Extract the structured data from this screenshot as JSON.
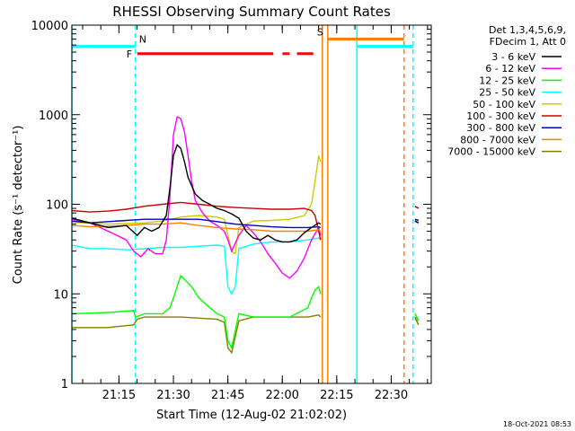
{
  "chart_data": {
    "type": "line",
    "title": "RHESSI Observing Summary Count Rates",
    "xlabel": "Start Time (12-Aug-02 21:02:02)",
    "ylabel": "Count Rate (s⁻¹ detector⁻¹)",
    "yscale": "log",
    "ylim": [
      1,
      10000
    ],
    "xlim_minutes": [
      0,
      99
    ],
    "x_unit": "minutes after 21:02:02",
    "x_tick_labels": [
      "21:15",
      "21:30",
      "21:45",
      "22:00",
      "22:15",
      "22:30"
    ],
    "x_tick_minutes": [
      12.97,
      27.97,
      42.97,
      57.97,
      72.97,
      87.97
    ],
    "y_tick_labels": [
      "1",
      "10",
      "100",
      "1000",
      "10000"
    ],
    "y_tick_values": [
      1,
      10,
      100,
      1000,
      10000
    ],
    "legend_header": [
      "Det 1,3,4,5,6,9,",
      "FDecim 1, Att 0"
    ],
    "legend_placement": "right",
    "timestamp": "18-Oct-2021 08:53",
    "series": [
      {
        "name": "3 - 6 keV",
        "color": "#000000",
        "x": [
          0,
          5,
          10,
          15,
          18,
          20,
          22,
          24,
          26,
          27,
          28,
          29,
          30,
          31,
          32,
          34,
          36,
          38,
          40,
          42,
          44,
          46,
          48,
          50,
          52,
          54,
          56,
          58,
          60,
          62,
          64,
          66,
          68,
          68.5
        ],
        "y": [
          70,
          62,
          55,
          58,
          45,
          55,
          50,
          55,
          75,
          150,
          350,
          460,
          420,
          300,
          200,
          130,
          110,
          100,
          90,
          85,
          78,
          70,
          50,
          42,
          40,
          45,
          40,
          38,
          38,
          40,
          48,
          55,
          62,
          60
        ]
      },
      {
        "name": "6 - 12 keV",
        "color": "#ff00ff",
        "x": [
          0,
          5,
          10,
          15,
          17,
          19,
          21,
          23,
          25,
          26,
          27,
          28,
          29,
          30,
          31,
          32,
          33,
          34,
          36,
          38,
          40,
          42,
          43,
          44,
          46,
          48,
          50,
          52,
          54,
          56,
          58,
          60,
          62,
          64,
          66,
          68,
          68.5
        ],
        "y": [
          68,
          62,
          50,
          40,
          30,
          26,
          32,
          28,
          28,
          40,
          120,
          600,
          950,
          900,
          650,
          350,
          180,
          110,
          80,
          65,
          58,
          50,
          40,
          30,
          45,
          58,
          48,
          38,
          28,
          22,
          17,
          15,
          18,
          25,
          40,
          55,
          45
        ]
      },
      {
        "name": "12 - 25 keV",
        "color": "#00ff00",
        "x": [
          0,
          10,
          17,
          17.5,
          20,
          25,
          27,
          28,
          30,
          33,
          35,
          38,
          40,
          42,
          43,
          44,
          46,
          50,
          55,
          60,
          65,
          66,
          67,
          68,
          68.5
        ],
        "y": [
          6,
          6.2,
          6.5,
          5.5,
          6,
          6,
          7,
          9,
          16,
          12,
          9,
          7,
          6,
          5.5,
          3,
          2.5,
          6,
          5.5,
          5.5,
          5.5,
          7,
          9,
          11,
          12,
          10
        ]
      },
      {
        "name": "25 - 50 keV",
        "color": "#00ffff",
        "x": [
          0,
          5,
          10,
          15,
          20,
          25,
          30,
          35,
          40,
          42,
          43,
          44,
          45,
          46,
          50,
          55,
          60,
          65,
          68,
          68.5
        ],
        "y": [
          35,
          32,
          32,
          31,
          32,
          33,
          33,
          34,
          35,
          34,
          12,
          10,
          12,
          32,
          36,
          38,
          38,
          40,
          42,
          40
        ]
      },
      {
        "name": "50 - 100 keV",
        "color": "#cccc00",
        "x": [
          0,
          10,
          20,
          25,
          30,
          35,
          40,
          42,
          44,
          45,
          46,
          50,
          55,
          60,
          64,
          66,
          67,
          68,
          68.5
        ],
        "y": [
          63,
          60,
          62,
          65,
          72,
          75,
          72,
          68,
          30,
          28,
          55,
          65,
          66,
          68,
          75,
          100,
          180,
          350,
          300
        ]
      },
      {
        "name": "100 - 300 keV",
        "color": "#cc0000",
        "x": [
          0,
          5,
          10,
          15,
          20,
          25,
          30,
          35,
          40,
          45,
          50,
          55,
          60,
          64,
          66,
          67,
          68,
          68.5
        ],
        "y": [
          85,
          82,
          84,
          88,
          95,
          100,
          105,
          100,
          95,
          92,
          90,
          88,
          88,
          90,
          85,
          75,
          50,
          40
        ]
      },
      {
        "name": "300 - 800 keV",
        "color": "#0000cc",
        "x": [
          0,
          5,
          10,
          15,
          20,
          25,
          30,
          35,
          40,
          45,
          50,
          55,
          60,
          65,
          68,
          68.5
        ],
        "y": [
          65,
          62,
          64,
          66,
          68,
          68,
          68,
          68,
          64,
          60,
          58,
          56,
          55,
          55,
          56,
          55
        ]
      },
      {
        "name": "800 - 7000 keV",
        "color": "#ff8000",
        "x": [
          0,
          5,
          10,
          15,
          20,
          25,
          30,
          35,
          40,
          45,
          50,
          55,
          60,
          65,
          68,
          68.5
        ],
        "y": [
          58,
          56,
          57,
          58,
          60,
          60,
          62,
          58,
          55,
          53,
          52,
          50,
          50,
          50,
          52,
          50
        ]
      },
      {
        "name": "7000 - 15000 keV",
        "color": "#808000",
        "x": [
          0,
          10,
          17,
          18,
          20,
          30,
          40,
          42,
          43,
          44,
          46,
          50,
          60,
          65,
          68,
          68.5
        ],
        "y": [
          4.2,
          4.2,
          4.5,
          5.2,
          5.5,
          5.5,
          5.2,
          4.8,
          2.5,
          2.2,
          5,
          5.5,
          5.5,
          5.5,
          5.8,
          5.5
        ]
      }
    ],
    "flags": [
      {
        "label": "N",
        "color": "#00ffff",
        "level": 5800,
        "segments": [
          [
            0,
            17.5
          ],
          [
            78.5,
            94
          ]
        ]
      },
      {
        "label": "F",
        "color": "#ff0000",
        "level": 4800,
        "segments": [
          [
            18,
            55.5
          ],
          [
            58,
            60
          ],
          [
            62,
            66.5
          ]
        ]
      },
      {
        "label": "S",
        "color": "#ff8000",
        "level": 7000,
        "segments": [
          [
            70.5,
            91.5
          ]
        ]
      }
    ],
    "vertical_markers": [
      {
        "color": "#00ffff",
        "style": "solid",
        "x": 0
      },
      {
        "color": "#00ffff",
        "style": "dashed",
        "x": 17.5
      },
      {
        "color": "#00ffff",
        "style": "solid",
        "x": 78.5
      },
      {
        "color": "#00ffff",
        "style": "dashed",
        "x": 94
      },
      {
        "color": "#ff8000",
        "style": "solid",
        "x": 69
      },
      {
        "color": "#ff8000",
        "style": "solid",
        "x": 70.5
      },
      {
        "color": "#ff8000",
        "style": "dashed",
        "x": 91.5
      }
    ],
    "late_segment": {
      "x": [
        94.5,
        95.5
      ],
      "values": [
        {
          "color": "#cc0000",
          "y": [
            95,
            90
          ]
        },
        {
          "color": "#0000cc",
          "y": [
            68,
            66
          ]
        },
        {
          "color": "#000000",
          "y": [
            65,
            62
          ]
        },
        {
          "color": "#808000",
          "y": [
            5.5,
            4.5
          ]
        },
        {
          "color": "#00ff00",
          "y": [
            6,
            5
          ]
        }
      ]
    }
  }
}
